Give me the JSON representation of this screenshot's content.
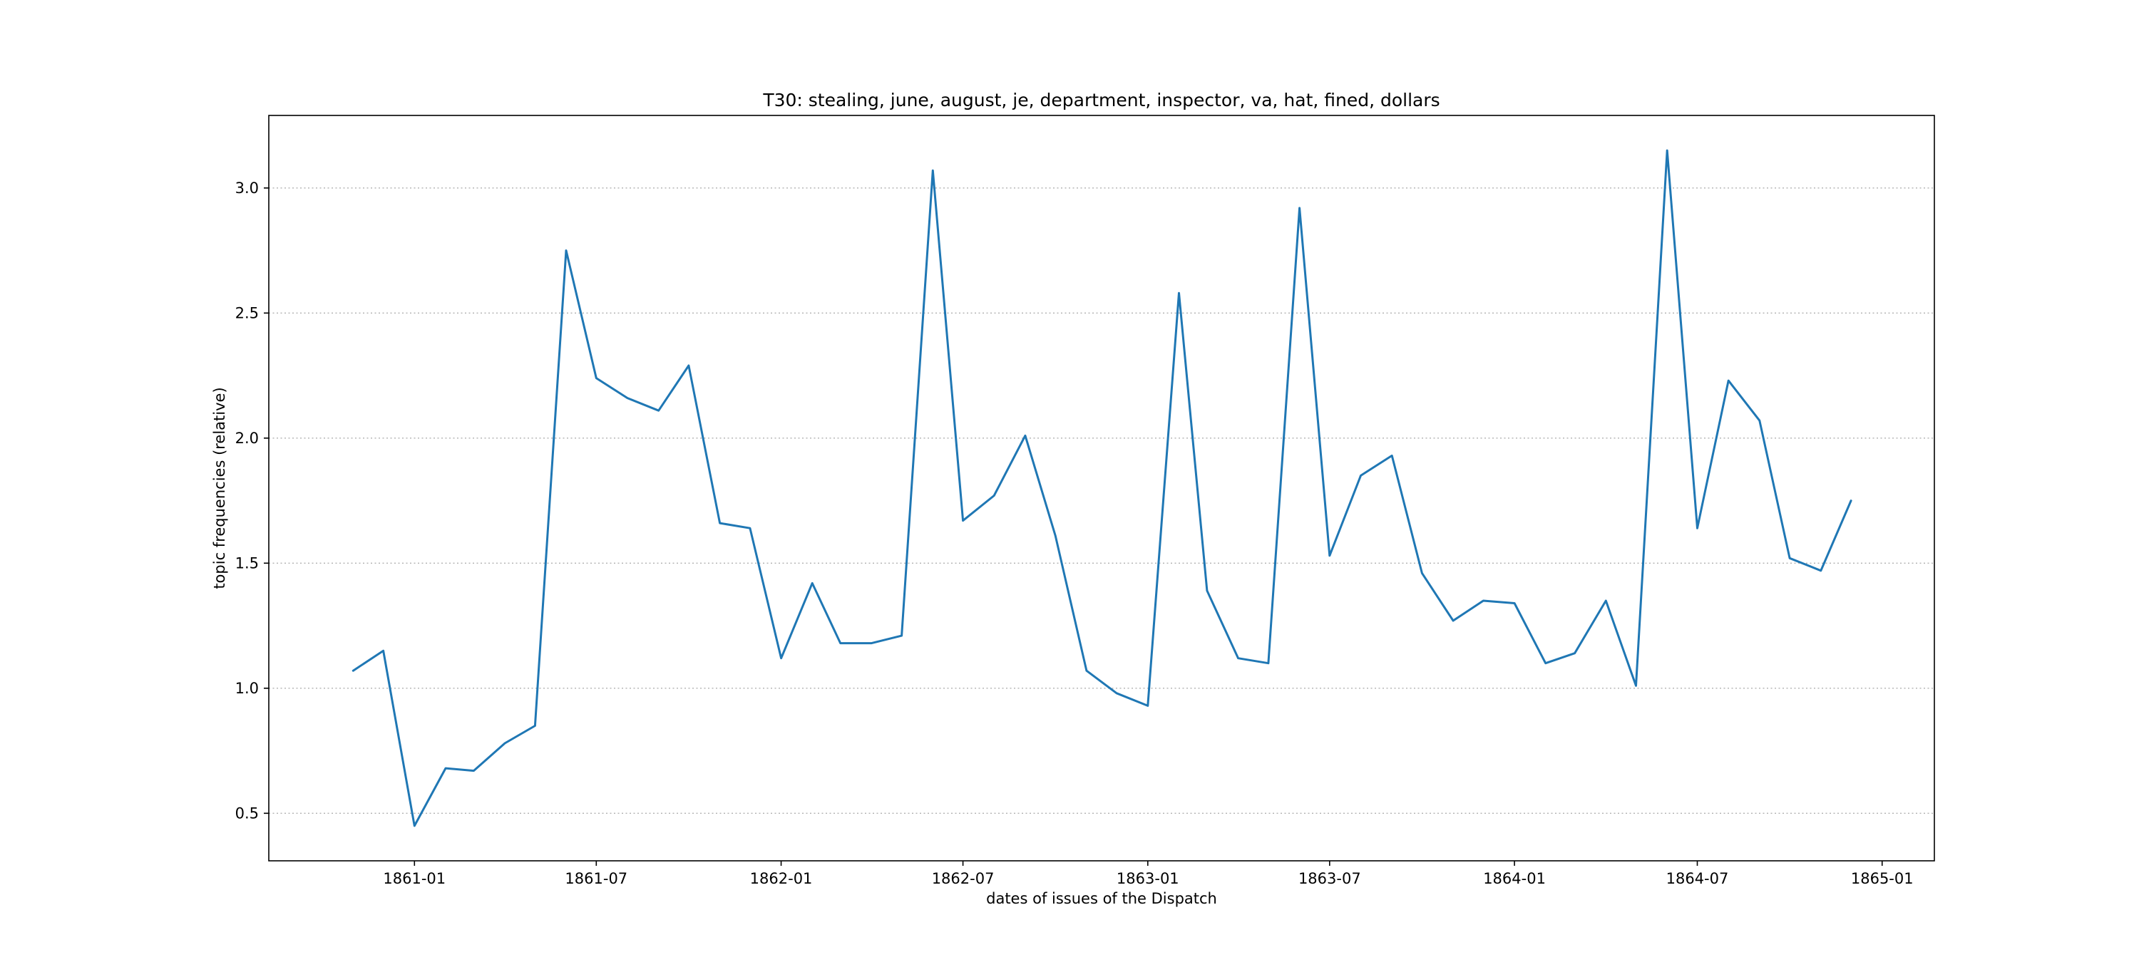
{
  "chart_data": {
    "type": "line",
    "title": "T30: stealing, june, august, je, department, inspector, va, hat, fined, dollars",
    "xlabel": "dates of issues of the Dispatch",
    "ylabel": "topic frequencies (relative)",
    "xlim": [
      "1860-08-09",
      "1865-02-22"
    ],
    "ylim": [
      0.31,
      3.29
    ],
    "x_ticks": [
      "1861-01",
      "1861-07",
      "1862-01",
      "1862-07",
      "1863-01",
      "1863-07",
      "1864-01",
      "1864-07",
      "1865-01"
    ],
    "y_ticks": [
      "0.5",
      "1.0",
      "1.5",
      "2.0",
      "2.5",
      "3.0"
    ],
    "grid": "horizontal dotted",
    "line_color": "#1f77b4",
    "series": [
      {
        "x": [
          "1860-11",
          "1860-12",
          "1861-01",
          "1861-02",
          "1861-03",
          "1861-04",
          "1861-05",
          "1861-06",
          "1861-07",
          "1861-08",
          "1861-09",
          "1861-10",
          "1861-11",
          "1861-12",
          "1862-01",
          "1862-02",
          "1862-03",
          "1862-04",
          "1862-05",
          "1862-06",
          "1862-07",
          "1862-08",
          "1862-09",
          "1862-10",
          "1862-11",
          "1862-12",
          "1863-01",
          "1863-02",
          "1863-03",
          "1863-04",
          "1863-05",
          "1863-06",
          "1863-07",
          "1863-08",
          "1863-09",
          "1863-10",
          "1863-11",
          "1863-12",
          "1864-01",
          "1864-02",
          "1864-03",
          "1864-04",
          "1864-05",
          "1864-06",
          "1864-07",
          "1864-08",
          "1864-09",
          "1864-10",
          "1864-11",
          "1864-12"
        ],
        "values": [
          1.07,
          1.15,
          0.45,
          0.68,
          0.67,
          0.78,
          0.85,
          2.75,
          2.24,
          2.16,
          2.11,
          2.29,
          1.66,
          1.64,
          1.12,
          1.42,
          1.18,
          1.18,
          1.21,
          3.07,
          1.67,
          1.77,
          2.01,
          1.61,
          1.07,
          0.98,
          0.93,
          2.58,
          1.39,
          1.12,
          1.1,
          2.92,
          1.53,
          1.85,
          1.93,
          1.46,
          1.27,
          1.35,
          1.34,
          1.1,
          1.14,
          1.35,
          1.01,
          3.15,
          1.64,
          2.23,
          2.07,
          1.52,
          1.47,
          1.75
        ]
      }
    ]
  }
}
